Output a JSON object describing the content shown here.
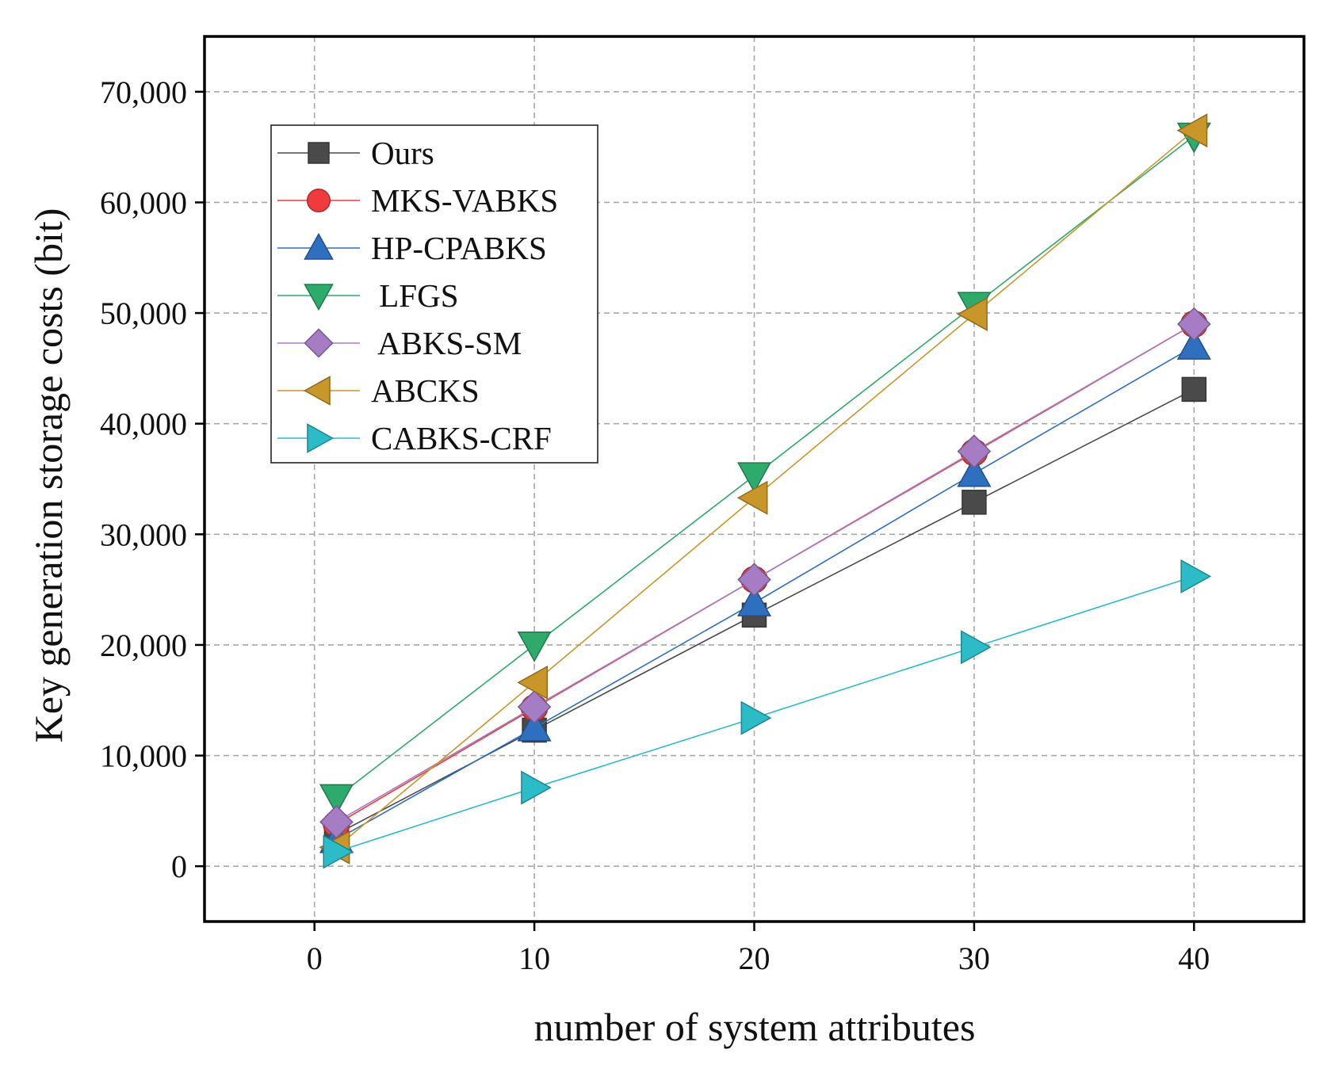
{
  "chart_data": {
    "type": "line",
    "title": "",
    "xlabel": "number of system attributes",
    "ylabel": "Key generation storage costs (bit)",
    "xlim": [
      -5,
      45
    ],
    "ylim": [
      -5000,
      75000
    ],
    "x_ticks": [
      0,
      10,
      20,
      30,
      40
    ],
    "x_tick_labels": [
      "0",
      "10",
      "20",
      "30",
      "40"
    ],
    "y_ticks": [
      0,
      10000,
      20000,
      30000,
      40000,
      50000,
      60000,
      70000
    ],
    "y_tick_labels": [
      "0",
      "10,000",
      "20,000",
      "30,000",
      "40,000",
      "50,000",
      "60,000",
      "70,000"
    ],
    "grid": true,
    "legend_position": "top-left",
    "x": [
      1,
      10,
      20,
      30,
      40
    ],
    "series": [
      {
        "name": "Ours",
        "marker": "square",
        "color": "#4a4a4a",
        "values": [
          2900,
          12300,
          22700,
          32900,
          43100
        ]
      },
      {
        "name": "MKS-VABKS",
        "marker": "circle",
        "color": "#ef3b3b",
        "values": [
          3800,
          14300,
          25900,
          37400,
          49000
        ]
      },
      {
        "name": "HP-CPABKS",
        "marker": "triangle-up",
        "color": "#2e6fc0",
        "values": [
          2400,
          12500,
          23800,
          35500,
          47000
        ]
      },
      {
        "name": " LFGS",
        "marker": "triangle-down",
        "color": "#2eaa6a",
        "values": [
          6200,
          20000,
          35300,
          50700,
          66000
        ]
      },
      {
        "name": " ABKS-SM",
        "marker": "diamond",
        "color": "#a67cc4",
        "values": [
          4000,
          14400,
          25900,
          37500,
          49000
        ]
      },
      {
        "name": "ABCKS",
        "marker": "triangle-left",
        "color": "#c9962a",
        "values": [
          1700,
          16600,
          33300,
          49900,
          66500
        ]
      },
      {
        "name": "CABKS-CRF",
        "marker": "triangle-right",
        "color": "#2bbcc8",
        "values": [
          1300,
          7100,
          13400,
          19800,
          26200
        ]
      }
    ]
  }
}
